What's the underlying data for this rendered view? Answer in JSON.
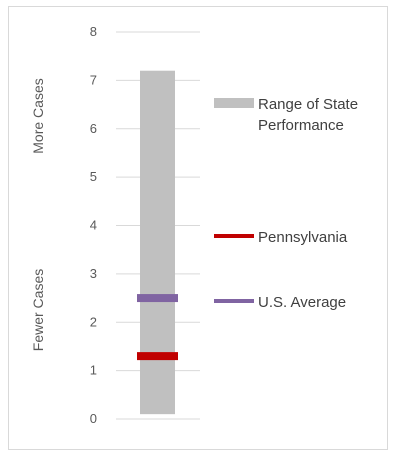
{
  "chart_data": {
    "type": "bar",
    "ylim": [
      0,
      8
    ],
    "y_ticks": [
      "0",
      "1",
      "2",
      "3",
      "4",
      "5",
      "6",
      "7",
      "8"
    ],
    "grid": true,
    "range": {
      "name": "Range of State Performance",
      "min": 0.1,
      "max": 7.2,
      "color": "#c0c0c0"
    },
    "markers": [
      {
        "name": "Pennsylvania",
        "value": 1.3,
        "color": "#c00000"
      },
      {
        "name": "U.S. Average",
        "value": 2.5,
        "color": "#8064a2"
      }
    ],
    "side_labels": {
      "top": "More Cases",
      "bottom": "Fewer Cases"
    },
    "legend_position": "right",
    "legend": {
      "range_line1": "Range of State",
      "range_line2": "Performance",
      "pennsylvania": "Pennsylvania",
      "us_average": "U.S. Average"
    }
  }
}
